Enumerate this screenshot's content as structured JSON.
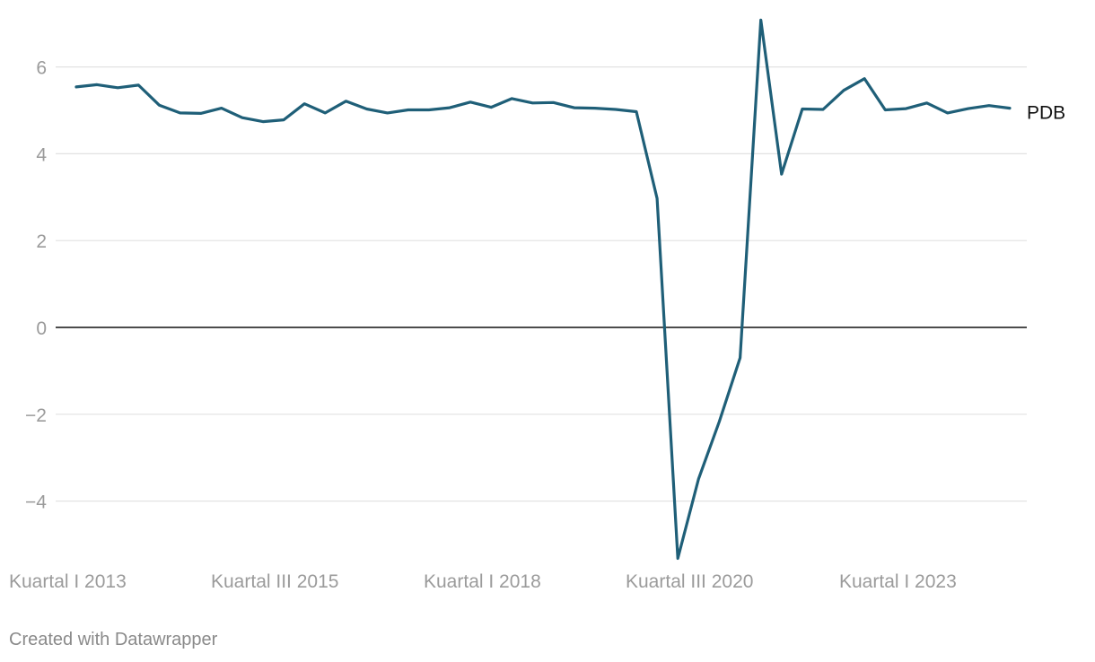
{
  "chart_data": {
    "type": "line",
    "title": "",
    "xlabel": "",
    "ylabel": "",
    "ylim": [
      -5.5,
      7.2
    ],
    "y_ticks": [
      6,
      4,
      2,
      0,
      -2,
      -4
    ],
    "y_tick_labels": [
      "6",
      "4",
      "2",
      "0",
      "−2",
      "−4"
    ],
    "x_tick_labels": [
      "Kuartal I 2013",
      "Kuartal III 2015",
      "Kuartal I 2018",
      "Kuartal III 2020",
      "Kuartal I 2023"
    ],
    "x_tick_indices": [
      0,
      10,
      20,
      30,
      40
    ],
    "grid": true,
    "zero_line": true,
    "line_color": "#1f5f78",
    "series": [
      {
        "name": "PDB",
        "values": [
          5.54,
          5.59,
          5.52,
          5.58,
          5.12,
          4.94,
          4.93,
          5.05,
          4.83,
          4.74,
          4.78,
          5.15,
          4.94,
          5.21,
          5.03,
          4.94,
          5.01,
          5.01,
          5.06,
          5.19,
          5.07,
          5.27,
          5.17,
          5.18,
          5.06,
          5.05,
          5.02,
          4.97,
          2.97,
          -5.32,
          -3.49,
          -2.17,
          -0.7,
          7.08,
          3.53,
          5.03,
          5.02,
          5.46,
          5.73,
          5.01,
          5.04,
          5.17,
          4.94,
          5.04,
          5.11,
          5.05
        ]
      }
    ]
  },
  "footer": {
    "credit": "Created with Datawrapper"
  }
}
